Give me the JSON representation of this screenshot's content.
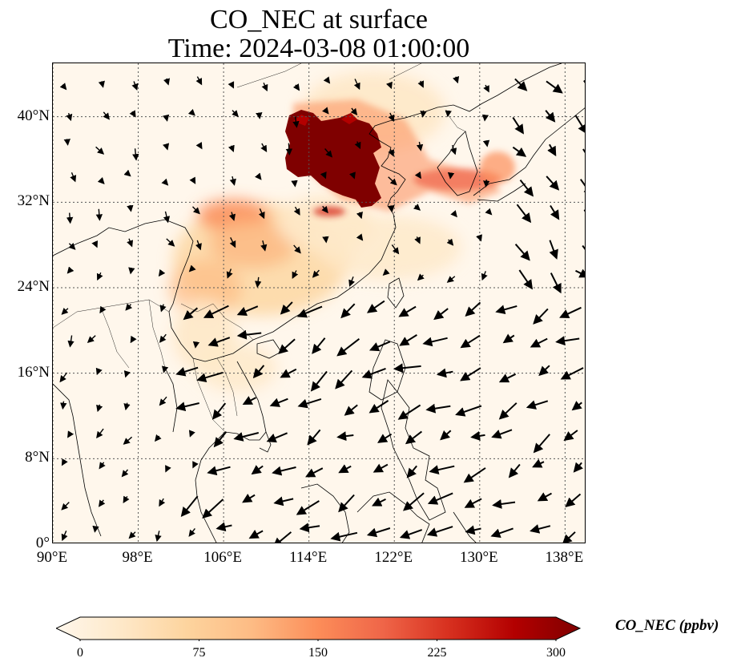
{
  "title": {
    "line1": "CO_NEC at surface",
    "line2": "Time: 2024-03-08 01:00:00"
  },
  "map": {
    "projection": "PlateCarree",
    "lon_range": [
      90,
      140
    ],
    "lat_range": [
      0,
      45
    ],
    "gridlines": true,
    "lat_ticks": [
      {
        "value": 40,
        "label": "40°N"
      },
      {
        "value": 32,
        "label": "32°N"
      },
      {
        "value": 24,
        "label": "24°N"
      },
      {
        "value": 16,
        "label": "16°N"
      },
      {
        "value": 8,
        "label": "8°N"
      },
      {
        "value": 0,
        "label": "0°"
      }
    ],
    "lon_ticks": [
      {
        "value": 90,
        "label": "90°E"
      },
      {
        "value": 98,
        "label": "98°E"
      },
      {
        "value": 106,
        "label": "106°E"
      },
      {
        "value": 114,
        "label": "114°E"
      },
      {
        "value": 122,
        "label": "122°E"
      },
      {
        "value": 130,
        "label": "130°E"
      },
      {
        "value": 138,
        "label": "138°E"
      }
    ],
    "field": "CO_NEC (ppbv)",
    "background_color": "#fff7ec",
    "high_concentration_color": "#7f0000"
  },
  "colorbar": {
    "label": "CO_NEC (ppbv)",
    "range": [
      0,
      300
    ],
    "extend": "both",
    "ticks": [
      {
        "value": 0,
        "label": "0"
      },
      {
        "value": 75,
        "label": "75"
      },
      {
        "value": 150,
        "label": "150"
      },
      {
        "value": 225,
        "label": "225"
      },
      {
        "value": 300,
        "label": "300"
      }
    ],
    "colors": [
      "#fff7ec",
      "#fee8c8",
      "#fdd49e",
      "#fdbb84",
      "#fc8d59",
      "#ef6548",
      "#d7301f",
      "#b30000",
      "#7f0000"
    ]
  }
}
